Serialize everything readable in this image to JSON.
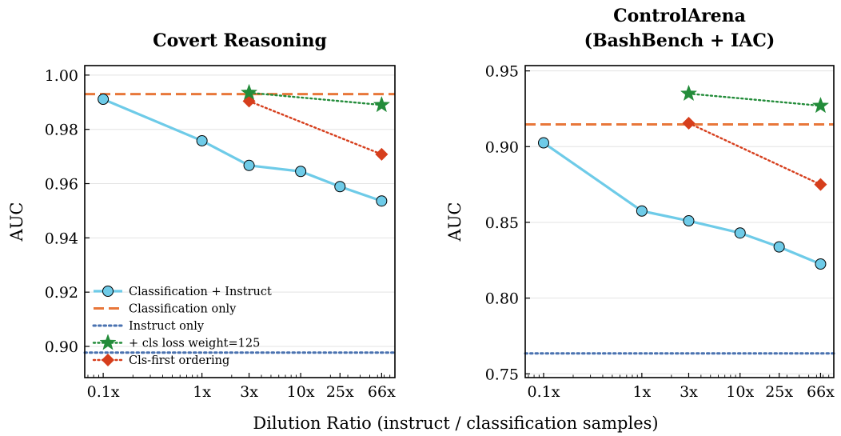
{
  "figure": {
    "xlabel": "Dilution Ratio (instruct / classification samples)"
  },
  "colors": {
    "classification_instruct": "#6ecbe8",
    "classification_only": "#e8773a",
    "instruct_only": "#4a72b0",
    "cls_loss_weight": "#238c3a",
    "cls_first": "#d63e1c"
  },
  "legend": {
    "items": [
      {
        "label": "Classification + Instruct",
        "series": "classification_instruct"
      },
      {
        "label": "Classification only",
        "series": "classification_only"
      },
      {
        "label": "Instruct only",
        "series": "instruct_only"
      },
      {
        "label": "+ cls loss weight=125",
        "series": "cls_loss_weight"
      },
      {
        "label": "Cls-first ordering",
        "series": "cls_first"
      }
    ]
  },
  "chart_data": [
    {
      "type": "line",
      "title": "Covert Reasoning",
      "xlabel": "",
      "ylabel": "AUC",
      "xscale": "log",
      "xlim": [
        0.065,
        90
      ],
      "ylim": [
        0.8885,
        1.0035
      ],
      "xticks": [
        0.1,
        1,
        3,
        10,
        25,
        66
      ],
      "xtick_labels": [
        "0.1x",
        "1x",
        "3x",
        "10x",
        "25x",
        "66x"
      ],
      "yticks": [
        0.9,
        0.92,
        0.94,
        0.96,
        0.98,
        1.0
      ],
      "ytick_labels": [
        "0.90",
        "0.92",
        "0.94",
        "0.96",
        "0.98",
        "1.00"
      ],
      "grid": "y",
      "legend_position": "lower-left",
      "series": [
        {
          "name": "Classification + Instruct",
          "key": "classification_instruct",
          "kind": "line-marker",
          "x": [
            0.1,
            1,
            3,
            10,
            25,
            66
          ],
          "values": [
            0.9911,
            0.9758,
            0.9667,
            0.9645,
            0.9589,
            0.9536
          ]
        },
        {
          "name": "Classification only",
          "key": "classification_only",
          "kind": "hline",
          "value": 0.993
        },
        {
          "name": "Instruct only",
          "key": "instruct_only",
          "kind": "hline",
          "value": 0.8977
        },
        {
          "name": "+ cls loss weight=125",
          "key": "cls_loss_weight",
          "kind": "dotted-star",
          "x": [
            3,
            66
          ],
          "values": [
            0.9935,
            0.989
          ]
        },
        {
          "name": "Cls-first ordering",
          "key": "cls_first",
          "kind": "dotted-diamond",
          "x": [
            3,
            66
          ],
          "values": [
            0.9904,
            0.9708
          ]
        }
      ]
    },
    {
      "type": "line",
      "title_lines": [
        "ControlArena",
        "(BashBench + IAC)"
      ],
      "xlabel": "",
      "ylabel": "AUC",
      "xscale": "log",
      "xlim": [
        0.065,
        90
      ],
      "ylim": [
        0.7475,
        0.9535
      ],
      "xticks": [
        0.1,
        1,
        3,
        10,
        25,
        66
      ],
      "xtick_labels": [
        "0.1x",
        "1x",
        "3x",
        "10x",
        "25x",
        "66x"
      ],
      "yticks": [
        0.75,
        0.8,
        0.85,
        0.9,
        0.95
      ],
      "ytick_labels": [
        "0.75",
        "0.80",
        "0.85",
        "0.90",
        "0.95"
      ],
      "grid": "y",
      "legend_position": "none",
      "series": [
        {
          "name": "Classification + Instruct",
          "key": "classification_instruct",
          "kind": "line-marker",
          "x": [
            0.1,
            1,
            3,
            10,
            25,
            66
          ],
          "values": [
            0.9025,
            0.8575,
            0.851,
            0.843,
            0.8338,
            0.8225
          ]
        },
        {
          "name": "Classification only",
          "key": "classification_only",
          "kind": "hline",
          "value": 0.9147
        },
        {
          "name": "Instruct only",
          "key": "instruct_only",
          "kind": "hline",
          "value": 0.7635
        },
        {
          "name": "+ cls loss weight=125",
          "key": "cls_loss_weight",
          "kind": "dotted-star",
          "x": [
            3,
            66
          ],
          "values": [
            0.935,
            0.927
          ]
        },
        {
          "name": "Cls-first ordering",
          "key": "cls_first",
          "kind": "dotted-diamond",
          "x": [
            3,
            66
          ],
          "values": [
            0.9155,
            0.875
          ]
        }
      ]
    }
  ]
}
